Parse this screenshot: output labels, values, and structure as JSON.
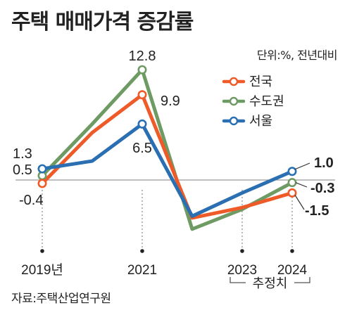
{
  "title": "주택 매매가격 증감률",
  "source": "자료:주택산업연구원",
  "colors": {
    "전국": "#ee5a28",
    "수도권": "#6e9a64",
    "서울": "#2a6fb2",
    "baseline": "#9a9a9a",
    "text": "#222222"
  },
  "chart_data": {
    "type": "line",
    "unit": "단위:%, 전년대비",
    "x": [
      2019,
      2020,
      2021,
      2022,
      2023,
      2024
    ],
    "xtick_labels": [
      "2019년",
      "2021",
      "2023",
      "2024"
    ],
    "forecast_label": "추정치",
    "series": [
      {
        "name": "전국",
        "values": [
          -0.4,
          5.5,
          9.9,
          -4.4,
          -3.2,
          -1.5
        ]
      },
      {
        "name": "수도권",
        "values": [
          0.5,
          6.5,
          12.8,
          -5.7,
          -3.4,
          -0.3
        ]
      },
      {
        "name": "서울",
        "values": [
          1.3,
          2.2,
          6.5,
          -4.2,
          -1.5,
          1.0
        ]
      }
    ],
    "data_labels": {
      "전국": {
        "2019": "-0.4",
        "2021": "9.9",
        "2024": "-1.5"
      },
      "수도권": {
        "2019": "0.5",
        "2021": "12.8",
        "2024": "-0.3"
      },
      "서울": {
        "2019": "1.3",
        "2021": "6.5",
        "2024": "1.0"
      }
    },
    "marker_years": [
      2019,
      2021,
      2024
    ],
    "legend_position": "top-right",
    "grid": false
  }
}
